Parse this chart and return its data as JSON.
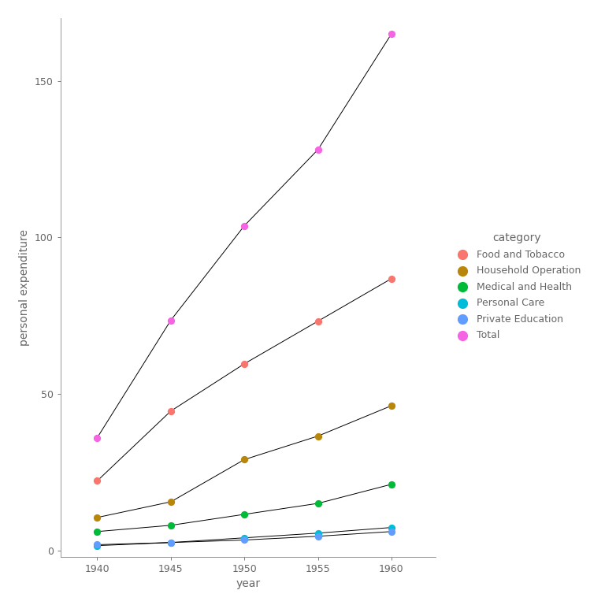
{
  "years": [
    1940,
    1945,
    1950,
    1955,
    1960
  ],
  "series": {
    "Food and Tobacco": {
      "values": [
        22.2,
        44.5,
        59.6,
        73.2,
        86.8
      ],
      "color": "#F8766D"
    },
    "Household Operation": {
      "values": [
        10.5,
        15.5,
        29.0,
        36.5,
        46.2
      ],
      "color": "#B8860B"
    },
    "Medical and Health": {
      "values": [
        6.0,
        8.0,
        11.5,
        15.0,
        21.1
      ],
      "color": "#00BA38"
    },
    "Personal Care": {
      "values": [
        1.5,
        2.5,
        4.0,
        5.5,
        7.3
      ],
      "color": "#00BCD8"
    },
    "Private Education": {
      "values": [
        1.8,
        2.5,
        3.3,
        4.5,
        6.0
      ],
      "color": "#619CFF"
    },
    "Total": {
      "values": [
        36.0,
        73.5,
        103.7,
        128.0,
        165.0
      ],
      "color": "#F564E3"
    }
  },
  "xlabel": "year",
  "ylabel": "personal expenditure",
  "legend_title": "category",
  "ylim": [
    -2,
    170
  ],
  "yticks": [
    0,
    50,
    100,
    150
  ],
  "xlim": [
    1937.5,
    1963
  ],
  "background_color": "#ffffff",
  "marker_size": 32,
  "line_color": "black",
  "line_width": 0.7,
  "axis_color": "#888888",
  "tick_color": "#666666",
  "tick_labelsize": 9,
  "xlabel_fontsize": 10,
  "ylabel_fontsize": 10,
  "legend_title_fontsize": 10,
  "legend_fontsize": 9
}
